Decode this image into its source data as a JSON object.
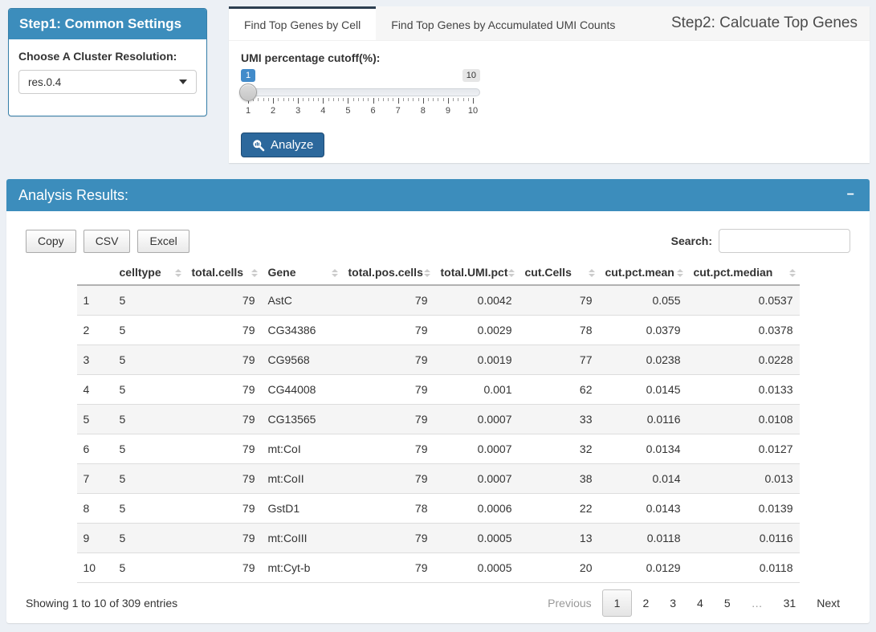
{
  "step1": {
    "title": "Step1: Common Settings",
    "resolution_label": "Choose A Cluster Resolution:",
    "resolution_value": "res.0.4"
  },
  "step2": {
    "title": "Step2: Calcuate Top Genes",
    "tabs": [
      {
        "label": "Find Top Genes by Cell",
        "active": true
      },
      {
        "label": "Find Top Genes by Accumulated UMI Counts",
        "active": false
      }
    ],
    "slider": {
      "label": "UMI percentage cutoff(%):",
      "value": "1",
      "max_label": "10",
      "ticks": [
        "1",
        "2",
        "3",
        "4",
        "5",
        "6",
        "7",
        "8",
        "9",
        "10"
      ]
    },
    "analyze_label": "Analyze"
  },
  "results": {
    "title": "Analysis Results:",
    "collapse_label": "−",
    "export_buttons": [
      "Copy",
      "CSV",
      "Excel"
    ],
    "search_label": "Search:",
    "search_value": "",
    "table": {
      "columns": [
        "celltype",
        "total.cells",
        "Gene",
        "total.pos.cells",
        "total.UMI.pct",
        "cut.Cells",
        "cut.pct.mean",
        "cut.pct.median"
      ],
      "rows": [
        {
          "idx": "1",
          "cells": [
            "5",
            "79",
            "AstC",
            "79",
            "0.0042",
            "79",
            "0.055",
            "0.0537"
          ]
        },
        {
          "idx": "2",
          "cells": [
            "5",
            "79",
            "CG34386",
            "79",
            "0.0029",
            "78",
            "0.0379",
            "0.0378"
          ]
        },
        {
          "idx": "3",
          "cells": [
            "5",
            "79",
            "CG9568",
            "79",
            "0.0019",
            "77",
            "0.0238",
            "0.0228"
          ]
        },
        {
          "idx": "4",
          "cells": [
            "5",
            "79",
            "CG44008",
            "79",
            "0.001",
            "62",
            "0.0145",
            "0.0133"
          ]
        },
        {
          "idx": "5",
          "cells": [
            "5",
            "79",
            "CG13565",
            "79",
            "0.0007",
            "33",
            "0.0116",
            "0.0108"
          ]
        },
        {
          "idx": "6",
          "cells": [
            "5",
            "79",
            "mt:CoI",
            "79",
            "0.0007",
            "32",
            "0.0134",
            "0.0127"
          ]
        },
        {
          "idx": "7",
          "cells": [
            "5",
            "79",
            "mt:CoII",
            "79",
            "0.0007",
            "38",
            "0.014",
            "0.013"
          ]
        },
        {
          "idx": "8",
          "cells": [
            "5",
            "79",
            "GstD1",
            "78",
            "0.0006",
            "22",
            "0.0143",
            "0.0139"
          ]
        },
        {
          "idx": "9",
          "cells": [
            "5",
            "79",
            "mt:CoIII",
            "79",
            "0.0005",
            "13",
            "0.0118",
            "0.0116"
          ]
        },
        {
          "idx": "10",
          "cells": [
            "5",
            "79",
            "mt:Cyt-b",
            "79",
            "0.0005",
            "20",
            "0.0129",
            "0.0118"
          ]
        }
      ]
    },
    "info": "Showing 1 to 10 of 309 entries",
    "pagination": {
      "previous_label": "Previous",
      "pages": [
        "1",
        "2",
        "3",
        "4",
        "5",
        "…",
        "31"
      ],
      "current": "1",
      "next_label": "Next"
    }
  },
  "icons": {
    "dropdown-caret-icon": "▼",
    "analyze-search-icon": "magnifier-with-bars",
    "collapse-minus-icon": "−",
    "sort-icon": "▲▼"
  },
  "colors": {
    "header_blue": "#3c8dbc",
    "tab_accent_navy": "#2c3e50",
    "analyze_button_blue": "#2c689c",
    "slider_value_blue": "#428bca",
    "page_background": "#ecf0f5",
    "row_stripe": "#f5f5f5"
  }
}
